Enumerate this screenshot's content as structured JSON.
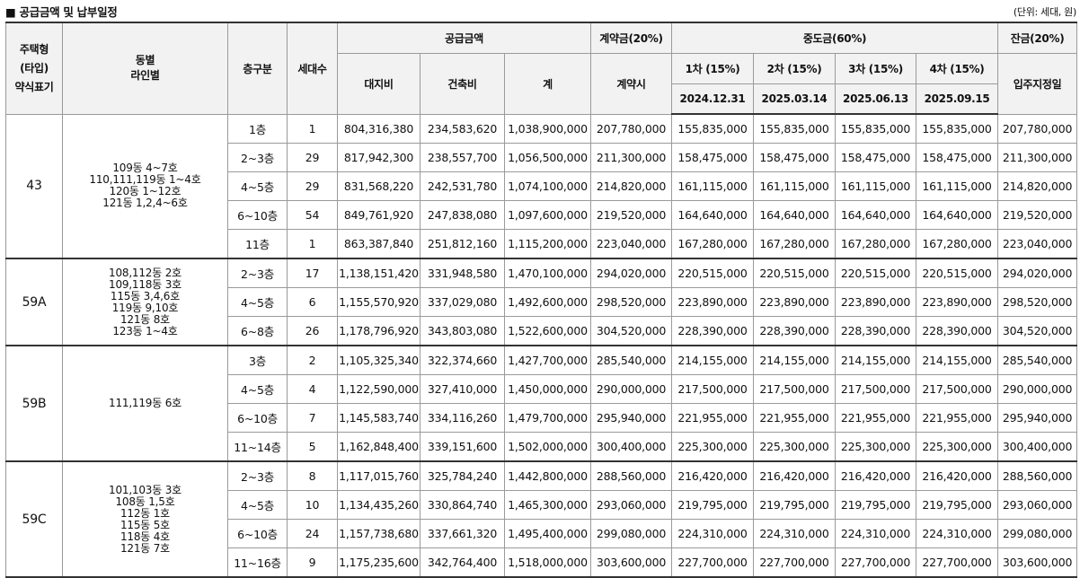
{
  "header": {
    "title": "■ 공급금액 및 납부일정",
    "unit": "(단위: 세대, 원)"
  },
  "columns": {
    "type_l1": "주택형",
    "type_l2": "(타입)",
    "type_l3": "약식표기",
    "line_l1": "동별",
    "line_l2": "라인별",
    "floor": "층구분",
    "households": "세대수",
    "supply": "공급금액",
    "land": "대지비",
    "building": "건축비",
    "total": "계",
    "deposit": "계약금(20%)",
    "deposit_sub": "계약시",
    "middle": "중도금(60%)",
    "m1": "1차 (15%)",
    "m2": "2차 (15%)",
    "m3": "3차 (15%)",
    "m4": "4차 (15%)",
    "m1_date": "2024.12.31",
    "m2_date": "2025.03.14",
    "m3_date": "2025.06.13",
    "m4_date": "2025.09.15",
    "balance": "잔금(20%)",
    "balance_sub": "입주지정일"
  },
  "groups": [
    {
      "type": "43",
      "lines": [
        "109동 4~7호",
        "110,111,119동 1~4호",
        "120동 1~12호",
        "121동 1,2,4~6호"
      ],
      "rows": [
        {
          "floor": "1층",
          "households": "1",
          "land": "804,316,380",
          "building": "234,583,620",
          "total": "1,038,900,000",
          "deposit": "207,780,000",
          "m1": "155,835,000",
          "m2": "155,835,000",
          "m3": "155,835,000",
          "m4": "155,835,000",
          "balance": "207,780,000"
        },
        {
          "floor": "2~3층",
          "households": "29",
          "land": "817,942,300",
          "building": "238,557,700",
          "total": "1,056,500,000",
          "deposit": "211,300,000",
          "m1": "158,475,000",
          "m2": "158,475,000",
          "m3": "158,475,000",
          "m4": "158,475,000",
          "balance": "211,300,000"
        },
        {
          "floor": "4~5층",
          "households": "29",
          "land": "831,568,220",
          "building": "242,531,780",
          "total": "1,074,100,000",
          "deposit": "214,820,000",
          "m1": "161,115,000",
          "m2": "161,115,000",
          "m3": "161,115,000",
          "m4": "161,115,000",
          "balance": "214,820,000"
        },
        {
          "floor": "6~10층",
          "households": "54",
          "land": "849,761,920",
          "building": "247,838,080",
          "total": "1,097,600,000",
          "deposit": "219,520,000",
          "m1": "164,640,000",
          "m2": "164,640,000",
          "m3": "164,640,000",
          "m4": "164,640,000",
          "balance": "219,520,000"
        },
        {
          "floor": "11층",
          "households": "1",
          "land": "863,387,840",
          "building": "251,812,160",
          "total": "1,115,200,000",
          "deposit": "223,040,000",
          "m1": "167,280,000",
          "m2": "167,280,000",
          "m3": "167,280,000",
          "m4": "167,280,000",
          "balance": "223,040,000"
        }
      ]
    },
    {
      "type": "59A",
      "lines": [
        "108,112동 2호",
        "109,118동 3호",
        "115동 3,4,6호",
        "119동 9,10호",
        "121동 8호",
        "123동 1~4호"
      ],
      "rows": [
        {
          "floor": "2~3층",
          "households": "17",
          "land": "1,138,151,420",
          "building": "331,948,580",
          "total": "1,470,100,000",
          "deposit": "294,020,000",
          "m1": "220,515,000",
          "m2": "220,515,000",
          "m3": "220,515,000",
          "m4": "220,515,000",
          "balance": "294,020,000"
        },
        {
          "floor": "4~5층",
          "households": "6",
          "land": "1,155,570,920",
          "building": "337,029,080",
          "total": "1,492,600,000",
          "deposit": "298,520,000",
          "m1": "223,890,000",
          "m2": "223,890,000",
          "m3": "223,890,000",
          "m4": "223,890,000",
          "balance": "298,520,000"
        },
        {
          "floor": "6~8층",
          "households": "26",
          "land": "1,178,796,920",
          "building": "343,803,080",
          "total": "1,522,600,000",
          "deposit": "304,520,000",
          "m1": "228,390,000",
          "m2": "228,390,000",
          "m3": "228,390,000",
          "m4": "228,390,000",
          "balance": "304,520,000"
        }
      ]
    },
    {
      "type": "59B",
      "lines": [
        "111,119동 6호"
      ],
      "rows": [
        {
          "floor": "3층",
          "households": "2",
          "land": "1,105,325,340",
          "building": "322,374,660",
          "total": "1,427,700,000",
          "deposit": "285,540,000",
          "m1": "214,155,000",
          "m2": "214,155,000",
          "m3": "214,155,000",
          "m4": "214,155,000",
          "balance": "285,540,000"
        },
        {
          "floor": "4~5층",
          "households": "4",
          "land": "1,122,590,000",
          "building": "327,410,000",
          "total": "1,450,000,000",
          "deposit": "290,000,000",
          "m1": "217,500,000",
          "m2": "217,500,000",
          "m3": "217,500,000",
          "m4": "217,500,000",
          "balance": "290,000,000"
        },
        {
          "floor": "6~10층",
          "households": "7",
          "land": "1,145,583,740",
          "building": "334,116,260",
          "total": "1,479,700,000",
          "deposit": "295,940,000",
          "m1": "221,955,000",
          "m2": "221,955,000",
          "m3": "221,955,000",
          "m4": "221,955,000",
          "balance": "295,940,000"
        },
        {
          "floor": "11~14층",
          "households": "5",
          "land": "1,162,848,400",
          "building": "339,151,600",
          "total": "1,502,000,000",
          "deposit": "300,400,000",
          "m1": "225,300,000",
          "m2": "225,300,000",
          "m3": "225,300,000",
          "m4": "225,300,000",
          "balance": "300,400,000"
        }
      ]
    },
    {
      "type": "59C",
      "lines": [
        "101,103동 3호",
        "108동 1,5호",
        "112동 1호",
        "115동 5호",
        "118동 4호",
        "121동 7호"
      ],
      "rows": [
        {
          "floor": "2~3층",
          "households": "8",
          "land": "1,117,015,760",
          "building": "325,784,240",
          "total": "1,442,800,000",
          "deposit": "288,560,000",
          "m1": "216,420,000",
          "m2": "216,420,000",
          "m3": "216,420,000",
          "m4": "216,420,000",
          "balance": "288,560,000"
        },
        {
          "floor": "4~5층",
          "households": "10",
          "land": "1,134,435,260",
          "building": "330,864,740",
          "total": "1,465,300,000",
          "deposit": "293,060,000",
          "m1": "219,795,000",
          "m2": "219,795,000",
          "m3": "219,795,000",
          "m4": "219,795,000",
          "balance": "293,060,000"
        },
        {
          "floor": "6~10층",
          "households": "24",
          "land": "1,157,738,680",
          "building": "337,661,320",
          "total": "1,495,400,000",
          "deposit": "299,080,000",
          "m1": "224,310,000",
          "m2": "224,310,000",
          "m3": "224,310,000",
          "m4": "224,310,000",
          "balance": "299,080,000"
        },
        {
          "floor": "11~16층",
          "households": "9",
          "land": "1,175,235,600",
          "building": "342,764,400",
          "total": "1,518,000,000",
          "deposit": "303,600,000",
          "m1": "227,700,000",
          "m2": "227,700,000",
          "m3": "227,700,000",
          "m4": "227,700,000",
          "balance": "303,600,000"
        }
      ]
    }
  ]
}
